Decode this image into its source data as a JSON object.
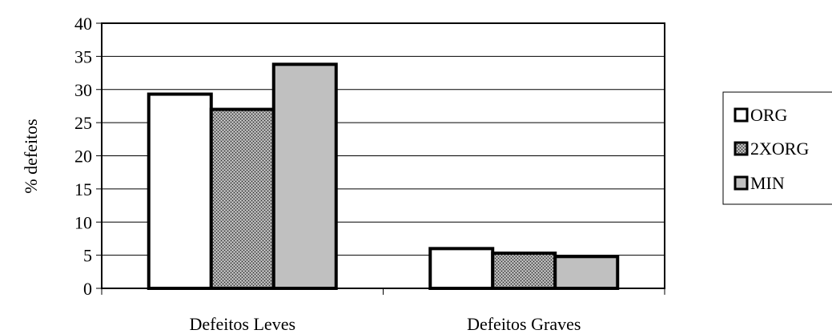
{
  "chart_data": {
    "type": "bar",
    "title": "",
    "xlabel": "",
    "ylabel": "% defeitos",
    "categories": [
      "Defeitos Leves",
      "Defeitos Graves"
    ],
    "series": [
      {
        "name": "ORG",
        "values": [
          29.3,
          6.0
        ],
        "color": "#ffffff",
        "pattern": "none"
      },
      {
        "name": "2XORG",
        "values": [
          27.0,
          5.3
        ],
        "color": "#7a7a7a",
        "pattern": "stipple"
      },
      {
        "name": "MIN",
        "values": [
          33.8,
          4.8
        ],
        "color": "#c0c0c0",
        "pattern": "none"
      }
    ],
    "ylim": [
      0,
      40
    ],
    "yticks": [
      "0",
      "5",
      "10",
      "15",
      "20",
      "25",
      "30",
      "35",
      "40"
    ],
    "grid": true,
    "legend_position": "right"
  }
}
